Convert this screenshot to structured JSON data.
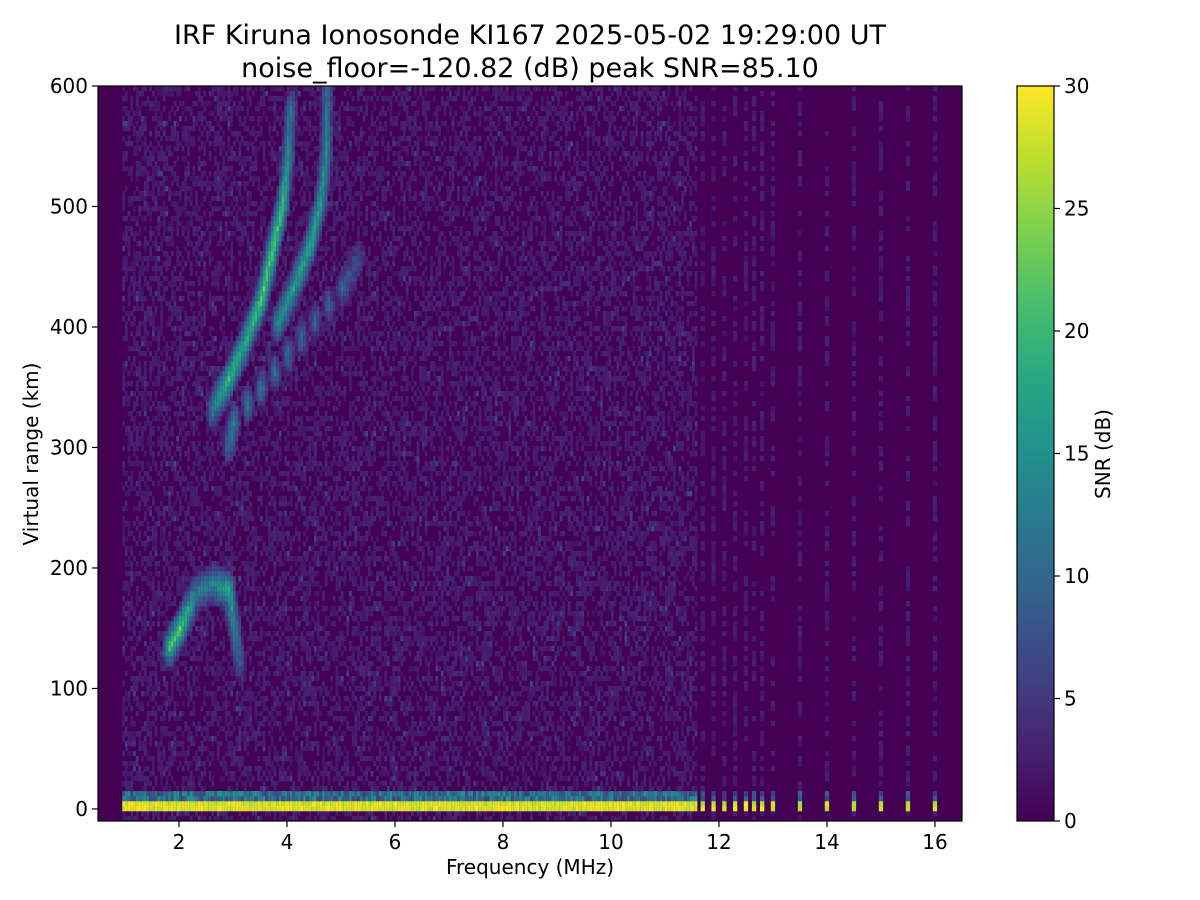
{
  "chart_data": {
    "type": "heatmap",
    "title": "IRF Kiruna Ionosonde KI167 2025-05-02 19:29:00  UT",
    "subtitle": "noise_floor=-120.82 (dB) peak SNR=85.10",
    "xlabel": "Frequency (MHz)",
    "ylabel": "Virtual range (km)",
    "xlim": [
      0.5,
      16.5
    ],
    "ylim": [
      -10,
      600
    ],
    "x_ticks": [
      2,
      4,
      6,
      8,
      10,
      12,
      14,
      16
    ],
    "y_ticks": [
      0,
      100,
      200,
      300,
      400,
      500,
      600
    ],
    "freq_range": [
      0.95,
      16.3
    ],
    "sparse_channels_mhz": [
      11.7,
      11.9,
      12.1,
      12.3,
      12.5,
      12.65,
      12.8,
      13.0,
      13.5,
      14.0,
      14.5,
      15.0,
      15.5,
      16.0
    ],
    "colorbar": {
      "label": "SNR (dB)",
      "min": 0,
      "max": 30,
      "ticks": [
        0,
        5,
        10,
        15,
        20,
        25,
        30
      ],
      "colormap": "viridis"
    },
    "traces": [
      {
        "name_hint": "ground-band",
        "f_range": [
          0.95,
          16.3
        ],
        "range_km": [
          -5,
          5
        ],
        "snr_db": 30
      },
      {
        "name_hint": "E-layer",
        "points": [
          [
            1.8,
            132,
            20
          ],
          [
            2.0,
            148,
            22
          ],
          [
            2.3,
            178,
            12
          ],
          [
            2.6,
            185,
            14
          ],
          [
            2.9,
            180,
            18
          ],
          [
            3.1,
            120,
            8
          ]
        ]
      },
      {
        "name_hint": "F-layer-o",
        "points": [
          [
            2.6,
            330,
            12
          ],
          [
            2.9,
            355,
            20
          ],
          [
            3.2,
            385,
            18
          ],
          [
            3.5,
            420,
            22
          ],
          [
            3.7,
            460,
            22
          ],
          [
            3.9,
            500,
            20
          ],
          [
            4.0,
            540,
            14
          ],
          [
            4.05,
            580,
            10
          ]
        ]
      },
      {
        "name_hint": "F-layer-x",
        "points": [
          [
            3.8,
            400,
            14
          ],
          [
            4.1,
            430,
            16
          ],
          [
            4.4,
            465,
            18
          ],
          [
            4.6,
            500,
            16
          ],
          [
            4.7,
            540,
            14
          ],
          [
            4.72,
            590,
            10
          ]
        ]
      },
      {
        "name_hint": "F-layer-tail",
        "points": [
          [
            2.9,
            300,
            10
          ],
          [
            3.0,
            320,
            12
          ],
          [
            5.0,
            430,
            8
          ],
          [
            5.3,
            455,
            6
          ]
        ]
      }
    ],
    "colors": {
      "low": "#440154",
      "high": "#fde725",
      "frame": "#000000"
    }
  }
}
